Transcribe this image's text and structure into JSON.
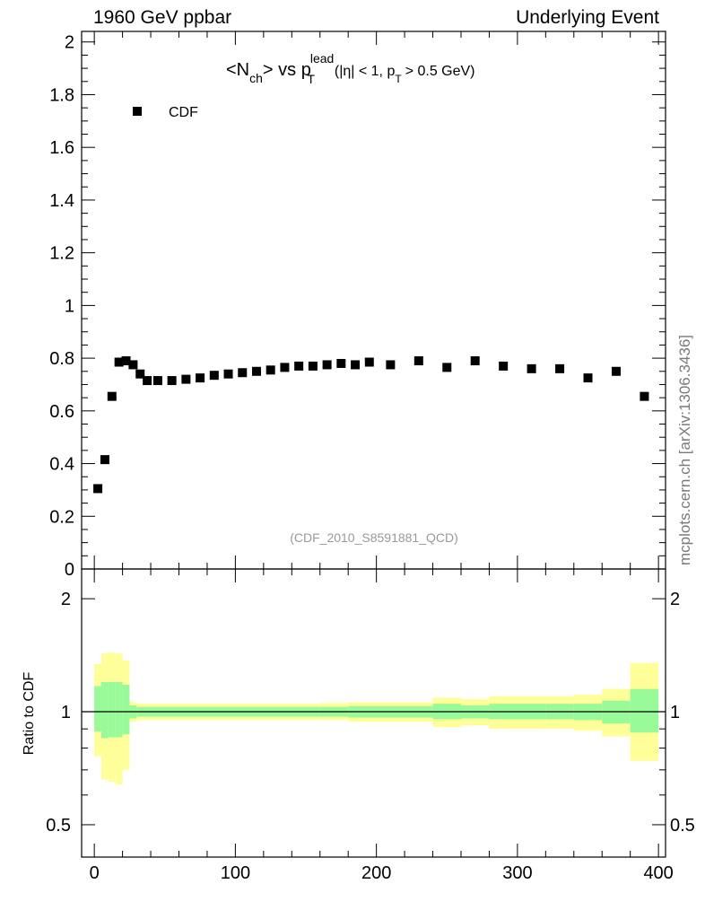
{
  "header": {
    "left": "1960 GeV ppbar",
    "right": "Underlying Event"
  },
  "watermark": "mcplots.cern.ch [arXiv:1306.3436]",
  "title": {
    "main": "<N",
    "sub_ch": "ch",
    "vs": "> vs p",
    "sup_lead": "lead",
    "sub_T": "T",
    "cut_open": "(|η| < 1, p",
    "cut_sub": "T",
    "cut_close": "> 0.5 GeV)"
  },
  "analysis_id": "(CDF_2010_S8591881_QCD)",
  "colors": {
    "band_inner": "#98fa98",
    "band_outer": "#ffff99",
    "marker": "#000000",
    "id_text": "#999999"
  },
  "chart_data": [
    {
      "panel": "main",
      "type": "scatter",
      "xlim": [
        -9,
        405
      ],
      "ylim": [
        0,
        2.04
      ],
      "yticks": [
        "0",
        "0.2",
        "0.4",
        "0.6",
        "0.8",
        "1",
        "1.2",
        "1.4",
        "1.6",
        "1.8",
        "2"
      ],
      "legend": {
        "position": "top-left",
        "entries": [
          "CDF"
        ]
      },
      "series": [
        {
          "name": "CDF",
          "x": [
            2.5,
            7.5,
            12.5,
            17.5,
            22.5,
            27.5,
            32.5,
            37.5,
            45,
            55,
            65,
            75,
            85,
            95,
            105,
            115,
            125,
            135,
            145,
            155,
            165,
            175,
            185,
            195,
            210,
            230,
            250,
            270,
            290,
            310,
            330,
            350,
            370,
            390
          ],
          "y": [
            0.305,
            0.415,
            0.655,
            0.785,
            0.79,
            0.775,
            0.74,
            0.715,
            0.715,
            0.715,
            0.72,
            0.725,
            0.735,
            0.74,
            0.745,
            0.75,
            0.755,
            0.765,
            0.77,
            0.77,
            0.775,
            0.78,
            0.775,
            0.785,
            0.775,
            0.79,
            0.765,
            0.79,
            0.77,
            0.76,
            0.76,
            0.725,
            0.75,
            0.655
          ]
        }
      ]
    },
    {
      "panel": "ratio",
      "type": "area",
      "ylabel": "Ratio to CDF",
      "yscale": "log",
      "ylim": [
        0.41,
        2.4
      ],
      "yticks": [
        "0.5",
        "1",
        "2"
      ],
      "xticks": [
        "0",
        "100",
        "200",
        "300",
        "400"
      ],
      "reference_line": 1,
      "bins": [
        [
          0,
          5,
          0.885,
          1.17,
          0.76,
          1.34
        ],
        [
          5,
          10,
          0.85,
          1.2,
          0.66,
          1.43
        ],
        [
          10,
          15,
          0.855,
          1.2,
          0.65,
          1.44
        ],
        [
          15,
          20,
          0.855,
          1.2,
          0.64,
          1.43
        ],
        [
          20,
          25,
          0.87,
          1.18,
          0.7,
          1.37
        ],
        [
          25,
          30,
          0.96,
          1.04,
          0.94,
          1.06
        ],
        [
          30,
          40,
          0.97,
          1.03,
          0.95,
          1.05
        ],
        [
          40,
          160,
          0.97,
          1.03,
          0.95,
          1.05
        ],
        [
          160,
          180,
          0.97,
          1.03,
          0.95,
          1.055
        ],
        [
          180,
          240,
          0.965,
          1.035,
          0.94,
          1.06
        ],
        [
          240,
          260,
          0.955,
          1.05,
          0.91,
          1.09
        ],
        [
          260,
          280,
          0.96,
          1.04,
          0.92,
          1.08
        ],
        [
          280,
          320,
          0.955,
          1.05,
          0.9,
          1.1
        ],
        [
          320,
          340,
          0.955,
          1.05,
          0.9,
          1.1
        ],
        [
          340,
          360,
          0.95,
          1.05,
          0.89,
          1.11
        ],
        [
          360,
          380,
          0.93,
          1.07,
          0.86,
          1.15
        ],
        [
          380,
          400,
          0.88,
          1.15,
          0.74,
          1.35
        ]
      ]
    }
  ]
}
